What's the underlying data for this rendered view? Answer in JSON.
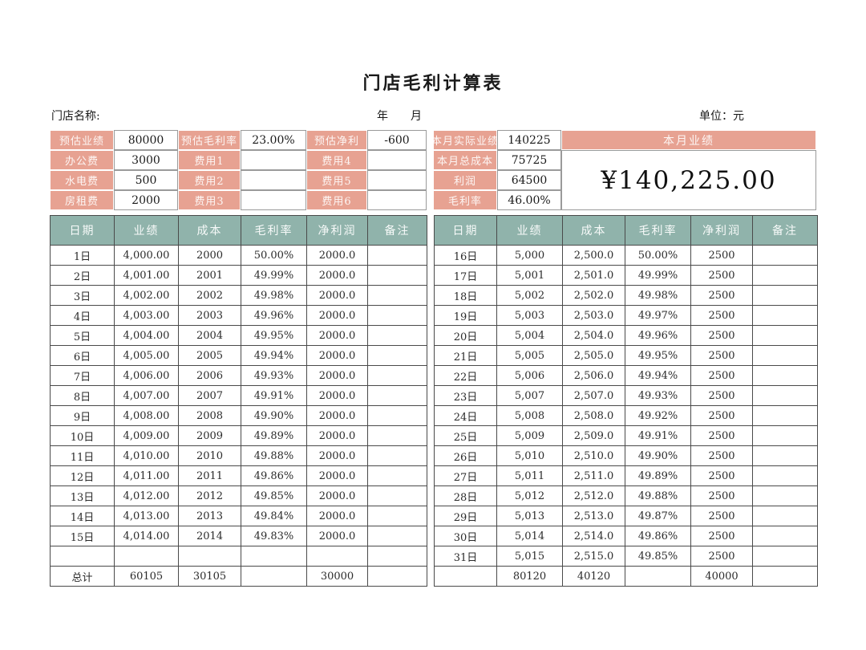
{
  "page": {
    "title": "门店毛利计算表",
    "store_name_label": "门店名称:",
    "year_month_label": "年　　月",
    "unit_label": "单位：元"
  },
  "colors": {
    "salmon": "#e7a292",
    "teal": "#90b3ab",
    "border": "#4a4a4a"
  },
  "summary": {
    "left_rows": [
      [
        "预估业绩",
        "80000",
        "预估毛利率",
        "23.00%",
        "预估净利",
        "-600"
      ],
      [
        "办公费",
        "3000",
        "费用1",
        "",
        "费用4",
        ""
      ],
      [
        "水电费",
        "500",
        "费用2",
        "",
        "费用5",
        ""
      ],
      [
        "房租费",
        "2000",
        "费用3",
        "",
        "费用6",
        ""
      ]
    ],
    "right_rows": [
      [
        "本月实际业绩",
        "140225"
      ],
      [
        "本月总成本",
        "75725"
      ],
      [
        "利润",
        "64500"
      ],
      [
        "毛利率",
        "46.00%"
      ]
    ],
    "monthly_header": "本月业绩",
    "monthly_amount": "¥140,225.00"
  },
  "table": {
    "headers": [
      "日期",
      "业绩",
      "成本",
      "毛利率",
      "净利润",
      "备注"
    ],
    "left_rows": [
      [
        "1日",
        "4,000.00",
        "2000",
        "50.00%",
        "2000.0",
        ""
      ],
      [
        "2日",
        "4,001.00",
        "2001",
        "49.99%",
        "2000.0",
        ""
      ],
      [
        "3日",
        "4,002.00",
        "2002",
        "49.98%",
        "2000.0",
        ""
      ],
      [
        "4日",
        "4,003.00",
        "2003",
        "49.96%",
        "2000.0",
        ""
      ],
      [
        "5日",
        "4,004.00",
        "2004",
        "49.95%",
        "2000.0",
        ""
      ],
      [
        "6日",
        "4,005.00",
        "2005",
        "49.94%",
        "2000.0",
        ""
      ],
      [
        "7日",
        "4,006.00",
        "2006",
        "49.93%",
        "2000.0",
        ""
      ],
      [
        "8日",
        "4,007.00",
        "2007",
        "49.91%",
        "2000.0",
        ""
      ],
      [
        "9日",
        "4,008.00",
        "2008",
        "49.90%",
        "2000.0",
        ""
      ],
      [
        "10日",
        "4,009.00",
        "2009",
        "49.89%",
        "2000.0",
        ""
      ],
      [
        "11日",
        "4,010.00",
        "2010",
        "49.88%",
        "2000.0",
        ""
      ],
      [
        "12日",
        "4,011.00",
        "2011",
        "49.86%",
        "2000.0",
        ""
      ],
      [
        "13日",
        "4,012.00",
        "2012",
        "49.85%",
        "2000.0",
        ""
      ],
      [
        "14日",
        "4,013.00",
        "2013",
        "49.84%",
        "2000.0",
        ""
      ],
      [
        "15日",
        "4,014.00",
        "2014",
        "49.83%",
        "2000.0",
        ""
      ],
      [
        "",
        "",
        "",
        "",
        "",
        ""
      ]
    ],
    "left_total": [
      [
        "总计",
        "60105",
        "30105",
        "",
        "30000",
        ""
      ]
    ],
    "right_rows": [
      [
        "16日",
        "5,000",
        "2,500.0",
        "50.00%",
        "2500",
        ""
      ],
      [
        "17日",
        "5,001",
        "2,501.0",
        "49.99%",
        "2500",
        ""
      ],
      [
        "18日",
        "5,002",
        "2,502.0",
        "49.98%",
        "2500",
        ""
      ],
      [
        "19日",
        "5,003",
        "2,503.0",
        "49.97%",
        "2500",
        ""
      ],
      [
        "20日",
        "5,004",
        "2,504.0",
        "49.96%",
        "2500",
        ""
      ],
      [
        "21日",
        "5,005",
        "2,505.0",
        "49.95%",
        "2500",
        ""
      ],
      [
        "22日",
        "5,006",
        "2,506.0",
        "49.94%",
        "2500",
        ""
      ],
      [
        "23日",
        "5,007",
        "2,507.0",
        "49.93%",
        "2500",
        ""
      ],
      [
        "24日",
        "5,008",
        "2,508.0",
        "49.92%",
        "2500",
        ""
      ],
      [
        "25日",
        "5,009",
        "2,509.0",
        "49.91%",
        "2500",
        ""
      ],
      [
        "26日",
        "5,010",
        "2,510.0",
        "49.90%",
        "2500",
        ""
      ],
      [
        "27日",
        "5,011",
        "2,511.0",
        "49.89%",
        "2500",
        ""
      ],
      [
        "28日",
        "5,012",
        "2,512.0",
        "49.88%",
        "2500",
        ""
      ],
      [
        "29日",
        "5,013",
        "2,513.0",
        "49.87%",
        "2500",
        ""
      ],
      [
        "30日",
        "5,014",
        "2,514.0",
        "49.86%",
        "2500",
        ""
      ],
      [
        "31日",
        "5,015",
        "2,515.0",
        "49.85%",
        "2500",
        ""
      ]
    ],
    "right_total": [
      [
        "",
        "80120",
        "40120",
        "",
        "40000",
        ""
      ]
    ]
  }
}
